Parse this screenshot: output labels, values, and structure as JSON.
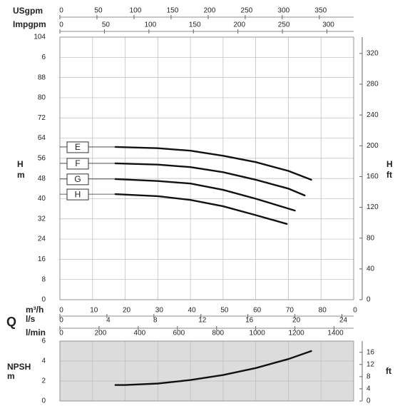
{
  "chart_data": [
    {
      "type": "line",
      "ylabel": [
        "H",
        "m"
      ],
      "y2label": [
        "H",
        "ft"
      ],
      "qlabel": "Q",
      "xlabel": "m³/h",
      "xlim": [
        0,
        90
      ],
      "xticks": [
        0,
        10,
        20,
        30,
        40,
        50,
        60,
        70,
        80,
        {
          "value": 90,
          "label": "0"
        }
      ],
      "ylim": [
        0,
        104
      ],
      "yticks": [
        0,
        8,
        16,
        24,
        32,
        40,
        48,
        56,
        64,
        72,
        80,
        88,
        {
          "value": 96,
          "label": "6"
        },
        104
      ],
      "y2lim": [
        0,
        341.2
      ],
      "y2ticks": [
        0,
        40,
        80,
        120,
        160,
        200,
        240,
        280,
        320
      ],
      "grid": true,
      "color": "#111111",
      "top_axes": [
        {
          "label": "USgpm",
          "xlim": [
            0,
            396.3
          ],
          "xticks": [
            0,
            50,
            100,
            150,
            200,
            250,
            300,
            350
          ]
        },
        {
          "label": "Impgpm",
          "xlim": [
            0,
            330
          ],
          "xticks": [
            0,
            50,
            100,
            150,
            200,
            250,
            300
          ]
        }
      ],
      "bottom_axes": [
        {
          "label": "l/s",
          "xlim": [
            0,
            25
          ],
          "xticks": [
            0,
            4,
            8,
            12,
            16,
            20,
            24
          ]
        },
        {
          "label": "l/min",
          "xlim": [
            0,
            1500
          ],
          "xticks": [
            0,
            200,
            400,
            600,
            800,
            1000,
            1200,
            1400
          ]
        }
      ],
      "series": [
        {
          "name": "E",
          "x": [
            17,
            30,
            40,
            50,
            60,
            70,
            77
          ],
          "values": [
            60.5,
            60,
            59,
            57,
            54.5,
            51,
            47.5
          ]
        },
        {
          "name": "F",
          "x": [
            17,
            30,
            40,
            50,
            60,
            70,
            75
          ],
          "values": [
            54,
            53.5,
            52.5,
            50.5,
            47.5,
            44,
            41.3
          ]
        },
        {
          "name": "G",
          "x": [
            17,
            30,
            40,
            50,
            60,
            72
          ],
          "values": [
            47.8,
            47,
            46,
            43.5,
            40,
            35.3
          ]
        },
        {
          "name": "H",
          "x": [
            17,
            30,
            40,
            50,
            60,
            69.5
          ],
          "values": [
            41.8,
            41,
            39.5,
            37,
            33.5,
            30
          ]
        }
      ]
    },
    {
      "type": "line",
      "ylabel": [
        "NPSH",
        "m"
      ],
      "y2label": [
        "ft"
      ],
      "xlim": [
        0,
        90
      ],
      "xticks": [
        0,
        10,
        20,
        30,
        40,
        50,
        60,
        70,
        80
      ],
      "ylim": [
        0,
        6
      ],
      "yticks": [
        0,
        2,
        4,
        6
      ],
      "y2lim": [
        0,
        19.685
      ],
      "y2ticks": [
        0,
        4,
        8,
        12,
        16
      ],
      "grid": true,
      "color": "#111111",
      "background": "#dcdcdc",
      "series": [
        {
          "x": [
            17,
            20,
            30,
            40,
            50,
            60,
            70,
            77
          ],
          "values": [
            1.6,
            1.6,
            1.75,
            2.1,
            2.6,
            3.3,
            4.2,
            5.0
          ]
        }
      ]
    }
  ]
}
